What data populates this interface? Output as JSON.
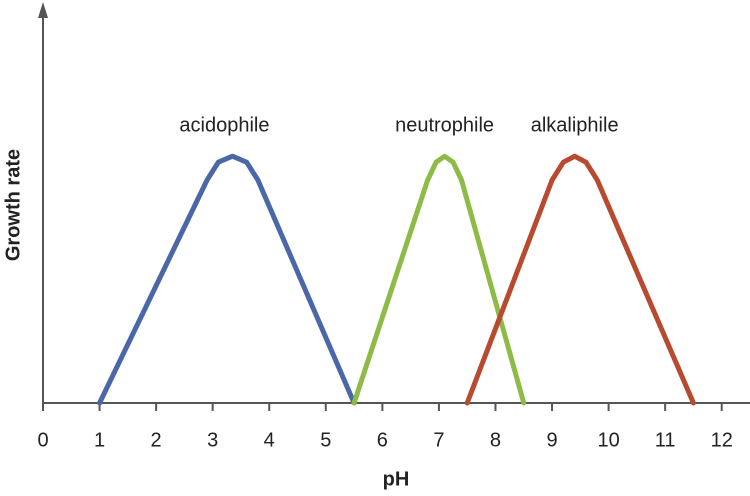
{
  "chart_data": {
    "type": "line",
    "x_label": "pH",
    "y_label": "Growth rate",
    "xlim": [
      0,
      12.5
    ],
    "xticks": [
      0,
      1,
      2,
      3,
      4,
      5,
      6,
      7,
      8,
      9,
      10,
      11,
      12
    ],
    "ylim": [
      0,
      1
    ],
    "series": [
      {
        "name": "acidophile",
        "color": "#4a67a8",
        "x": [
          1,
          2.9,
          3.1,
          3.35,
          3.6,
          3.8,
          5.5
        ],
        "values": [
          0,
          0.56,
          0.605,
          0.62,
          0.605,
          0.56,
          0
        ]
      },
      {
        "name": "neutrophile",
        "color": "#8dbb45",
        "x": [
          5.5,
          6.8,
          6.95,
          7.1,
          7.25,
          7.4,
          8.5
        ],
        "values": [
          0,
          0.56,
          0.605,
          0.62,
          0.605,
          0.56,
          0
        ]
      },
      {
        "name": "alkaliphile",
        "color": "#b84a2f",
        "x": [
          7.5,
          9.0,
          9.2,
          9.4,
          9.6,
          9.8,
          11.5
        ],
        "values": [
          0,
          0.56,
          0.605,
          0.62,
          0.605,
          0.56,
          0
        ]
      }
    ]
  }
}
